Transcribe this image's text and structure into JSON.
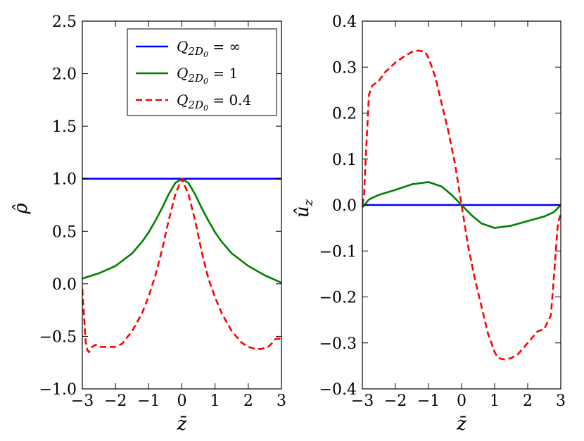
{
  "chart_data": [
    {
      "type": "line",
      "panel": "left",
      "xlabel": "z̄",
      "ylabel": "ρ̂",
      "xlim": [
        -3,
        3
      ],
      "ylim": [
        -1.0,
        2.5
      ],
      "xticks": [
        -3,
        -2,
        -1,
        0,
        1,
        2,
        3
      ],
      "xtick_labels": [
        "−3",
        "−2",
        "−1",
        "0",
        "1",
        "2",
        "3"
      ],
      "yticks": [
        -1.0,
        -0.5,
        0.0,
        0.5,
        1.0,
        1.5,
        2.0,
        2.5
      ],
      "ytick_labels": [
        "−1.0",
        "−0.5",
        "0.0",
        "0.5",
        "1.0",
        "1.5",
        "2.0",
        "2.5"
      ],
      "legend": {
        "placement": "top-right",
        "entries": [
          {
            "label": "Q2D0 = ∞",
            "base": "Q",
            "sub": "2D",
            "subsub": "0",
            "rhs": " = ∞",
            "color": "#0000ff",
            "dash": "solid"
          },
          {
            "label": "Q2D0 = 1",
            "base": "Q",
            "sub": "2D",
            "subsub": "0",
            "rhs": " = 1",
            "color": "#008000",
            "dash": "solid"
          },
          {
            "label": "Q2D0 = 0.4",
            "base": "Q",
            "sub": "2D",
            "subsub": "0",
            "rhs": " = 0.4",
            "color": "#ff0000",
            "dash": "dashed"
          }
        ]
      },
      "series": [
        {
          "name": "Q2D0 = ∞",
          "color": "#0000ff",
          "dash": "solid",
          "x": [
            -3,
            3
          ],
          "y": [
            1.0,
            1.0
          ]
        },
        {
          "name": "Q2D0 = 1",
          "color": "#008000",
          "dash": "solid",
          "x": [
            -3,
            -2.5,
            -2,
            -1.5,
            -1.2,
            -1,
            -0.8,
            -0.6,
            -0.4,
            -0.2,
            0,
            0.2,
            0.4,
            0.6,
            0.8,
            1,
            1.2,
            1.5,
            2,
            2.5,
            3
          ],
          "y": [
            0.05,
            0.1,
            0.17,
            0.29,
            0.4,
            0.49,
            0.6,
            0.72,
            0.85,
            0.96,
            1.0,
            0.96,
            0.85,
            0.72,
            0.6,
            0.49,
            0.4,
            0.29,
            0.17,
            0.08,
            0.01
          ]
        },
        {
          "name": "Q2D0 = 0.4",
          "color": "#ff0000",
          "dash": "dashed",
          "x": [
            -3,
            -2.95,
            -2.9,
            -2.85,
            -2.8,
            -2.7,
            -2.6,
            -2.5,
            -2.3,
            -2.0,
            -1.8,
            -1.5,
            -1.2,
            -1.0,
            -0.8,
            -0.6,
            -0.4,
            -0.2,
            0,
            0.2,
            0.4,
            0.6,
            0.8,
            1.0,
            1.2,
            1.5,
            1.8,
            2.0,
            2.2,
            2.4,
            2.6,
            2.7,
            2.8,
            2.9,
            3.0
          ],
          "y": [
            -0.05,
            -0.3,
            -0.55,
            -0.63,
            -0.65,
            -0.6,
            -0.58,
            -0.6,
            -0.6,
            -0.6,
            -0.57,
            -0.45,
            -0.28,
            -0.12,
            0.08,
            0.32,
            0.6,
            0.85,
            1.0,
            0.85,
            0.6,
            0.3,
            0.05,
            -0.13,
            -0.28,
            -0.45,
            -0.56,
            -0.6,
            -0.62,
            -0.62,
            -0.6,
            -0.57,
            -0.53,
            -0.52,
            -0.53
          ]
        }
      ]
    },
    {
      "type": "line",
      "panel": "right",
      "xlabel": "z̄",
      "ylabel": "ûz",
      "ylabel_base": "û",
      "ylabel_sub": "z",
      "xlim": [
        -3,
        3
      ],
      "ylim": [
        -0.4,
        0.4
      ],
      "xticks": [
        -3,
        -2,
        -1,
        0,
        1,
        2,
        3
      ],
      "xtick_labels": [
        "−3",
        "−2",
        "−1",
        "0",
        "1",
        "2",
        "3"
      ],
      "yticks": [
        -0.4,
        -0.3,
        -0.2,
        -0.1,
        0.0,
        0.1,
        0.2,
        0.3,
        0.4
      ],
      "ytick_labels": [
        "−0.4",
        "−0.3",
        "−0.2",
        "−0.1",
        "0.0",
        "0.1",
        "0.2",
        "0.3",
        "0.4"
      ],
      "series": [
        {
          "name": "Q2D0 = ∞",
          "color": "#0000ff",
          "dash": "solid",
          "x": [
            -3,
            3
          ],
          "y": [
            0.0,
            0.0
          ]
        },
        {
          "name": "Q2D0 = 1",
          "color": "#008000",
          "dash": "solid",
          "x": [
            -3,
            -2.8,
            -2.5,
            -2.0,
            -1.5,
            -1.0,
            -0.6,
            -0.3,
            0,
            0.3,
            0.6,
            1.0,
            1.5,
            2.0,
            2.5,
            2.8,
            3.0
          ],
          "y": [
            -0.005,
            0.012,
            0.022,
            0.033,
            0.045,
            0.05,
            0.04,
            0.022,
            0.0,
            -0.022,
            -0.04,
            -0.05,
            -0.045,
            -0.035,
            -0.025,
            -0.015,
            0.0
          ]
        },
        {
          "name": "Q2D0 = 0.4",
          "color": "#ff0000",
          "dash": "dashed",
          "x": [
            -3,
            -2.95,
            -2.9,
            -2.8,
            -2.7,
            -2.5,
            -2.3,
            -2.0,
            -1.7,
            -1.5,
            -1.3,
            -1.1,
            -1.0,
            -0.8,
            -0.6,
            -0.4,
            -0.2,
            0,
            0.2,
            0.4,
            0.6,
            0.8,
            1.0,
            1.1,
            1.3,
            1.5,
            1.7,
            2.0,
            2.3,
            2.5,
            2.7,
            2.8,
            2.9,
            2.95,
            3.0
          ],
          "y": [
            0.0,
            0.02,
            0.1,
            0.24,
            0.26,
            0.27,
            0.29,
            0.31,
            0.325,
            0.333,
            0.336,
            0.333,
            0.32,
            0.28,
            0.22,
            0.16,
            0.09,
            0.0,
            -0.09,
            -0.16,
            -0.22,
            -0.28,
            -0.32,
            -0.333,
            -0.336,
            -0.333,
            -0.325,
            -0.3,
            -0.275,
            -0.27,
            -0.24,
            -0.15,
            -0.05,
            -0.03,
            -0.02
          ]
        }
      ]
    }
  ]
}
